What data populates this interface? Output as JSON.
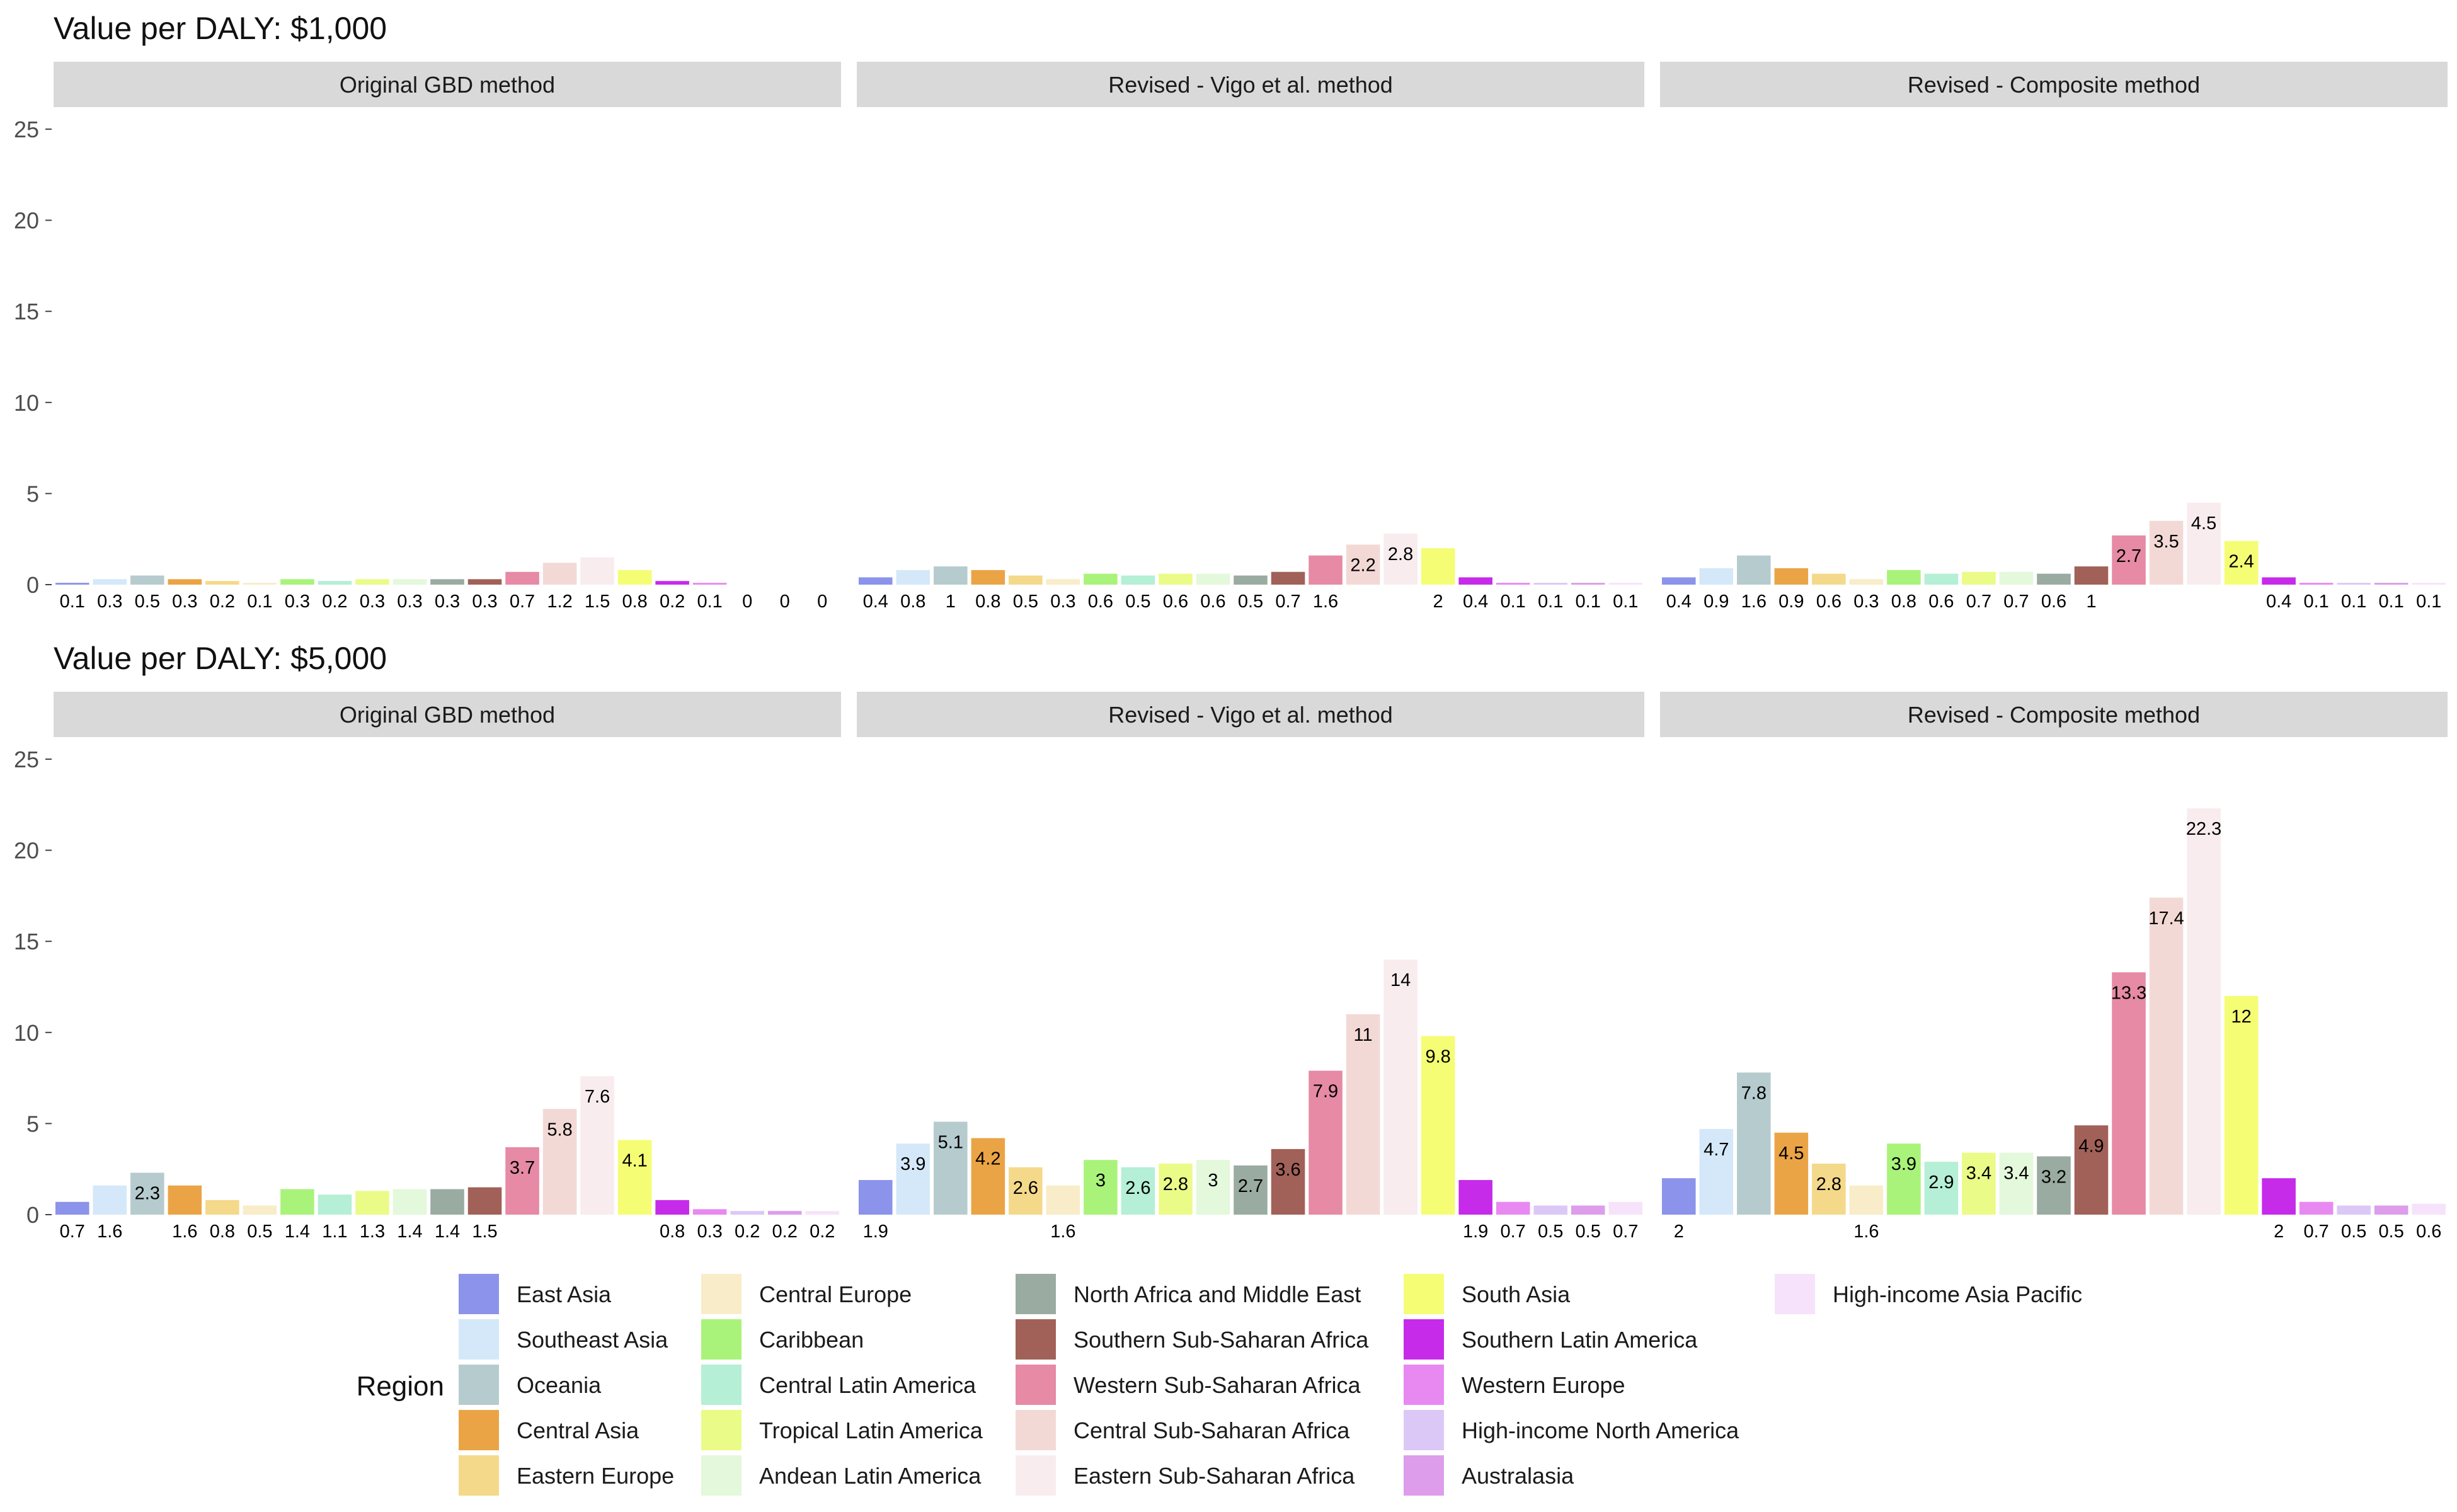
{
  "chart_data": [
    {
      "type": "bar",
      "title": "Value per DALY: $1,000",
      "ylim": [
        0,
        25
      ],
      "yticks": [
        0,
        5,
        10,
        15,
        20,
        25
      ],
      "grid": false,
      "facets": [
        {
          "name": "Original GBD method",
          "values": [
            0.1,
            0.3,
            0.5,
            0.3,
            0.2,
            0.1,
            0.3,
            0.2,
            0.3,
            0.3,
            0.3,
            0.3,
            0.7,
            1.2,
            1.5,
            0.8,
            0.2,
            0.1,
            0,
            0,
            0
          ]
        },
        {
          "name": "Revised - Vigo et al. method",
          "values": [
            0.4,
            0.8,
            1,
            0.8,
            0.5,
            0.3,
            0.6,
            0.5,
            0.6,
            0.6,
            0.5,
            0.7,
            1.6,
            2.2,
            2.8,
            2,
            0.4,
            0.1,
            0.1,
            0.1,
            0.1
          ]
        },
        {
          "name": "Revised - Composite method",
          "values": [
            0.4,
            0.9,
            1.6,
            0.9,
            0.6,
            0.3,
            0.8,
            0.6,
            0.7,
            0.7,
            0.6,
            1,
            2.7,
            3.5,
            4.5,
            2.4,
            0.4,
            0.1,
            0.1,
            0.1,
            0.1
          ]
        }
      ]
    },
    {
      "type": "bar",
      "title": "Value per DALY: $5,000",
      "ylim": [
        0,
        25
      ],
      "yticks": [
        0,
        5,
        10,
        15,
        20,
        25
      ],
      "grid": false,
      "facets": [
        {
          "name": "Original GBD method",
          "values": [
            0.7,
            1.6,
            2.3,
            1.6,
            0.8,
            0.5,
            1.4,
            1.1,
            1.3,
            1.4,
            1.4,
            1.5,
            3.7,
            5.8,
            7.6,
            4.1,
            0.8,
            0.3,
            0.2,
            0.2,
            0.2
          ]
        },
        {
          "name": "Revised - Vigo et al. method",
          "values": [
            1.9,
            3.9,
            5.1,
            4.2,
            2.6,
            1.6,
            3,
            2.6,
            2.8,
            3,
            2.7,
            3.6,
            7.9,
            11,
            14,
            9.8,
            1.9,
            0.7,
            0.5,
            0.5,
            0.7
          ]
        },
        {
          "name": "Revised - Composite method",
          "values": [
            2,
            4.7,
            7.8,
            4.5,
            2.8,
            1.6,
            3.9,
            2.9,
            3.4,
            3.4,
            3.2,
            4.9,
            13.3,
            17.4,
            22.3,
            12,
            2,
            0.7,
            0.5,
            0.5,
            0.6
          ]
        }
      ]
    }
  ],
  "legend": {
    "title": "Region",
    "position": "bottom",
    "items": [
      {
        "name": "East Asia",
        "color": "#8b93ea"
      },
      {
        "name": "Southeast Asia",
        "color": "#d4e8f9"
      },
      {
        "name": "Oceania",
        "color": "#b6cbce"
      },
      {
        "name": "Central Asia",
        "color": "#eba445"
      },
      {
        "name": "Eastern Europe",
        "color": "#f4d98a"
      },
      {
        "name": "Central Europe",
        "color": "#f8edc8"
      },
      {
        "name": "Caribbean",
        "color": "#a9f37a"
      },
      {
        "name": "Central Latin America",
        "color": "#b4efd6"
      },
      {
        "name": "Tropical Latin America",
        "color": "#eafb87"
      },
      {
        "name": "Andean Latin America",
        "color": "#e4f8db"
      },
      {
        "name": "North Africa and Middle East",
        "color": "#9aaba1"
      },
      {
        "name": "Southern Sub-Saharan Africa",
        "color": "#a16158"
      },
      {
        "name": "Western Sub-Saharan Africa",
        "color": "#e68aa6"
      },
      {
        "name": "Central Sub-Saharan Africa",
        "color": "#f3d9d5"
      },
      {
        "name": "Eastern Sub-Saharan Africa",
        "color": "#f8ecef"
      },
      {
        "name": "South Asia",
        "color": "#f5fd74"
      },
      {
        "name": "Southern Latin America",
        "color": "#c62be9"
      },
      {
        "name": "Western Europe",
        "color": "#e889f2"
      },
      {
        "name": "High-income North America",
        "color": "#dcc8f7"
      },
      {
        "name": "Australasia",
        "color": "#dd9deb"
      },
      {
        "name": "High-income Asia Pacific",
        "color": "#f6e3fb"
      }
    ]
  }
}
